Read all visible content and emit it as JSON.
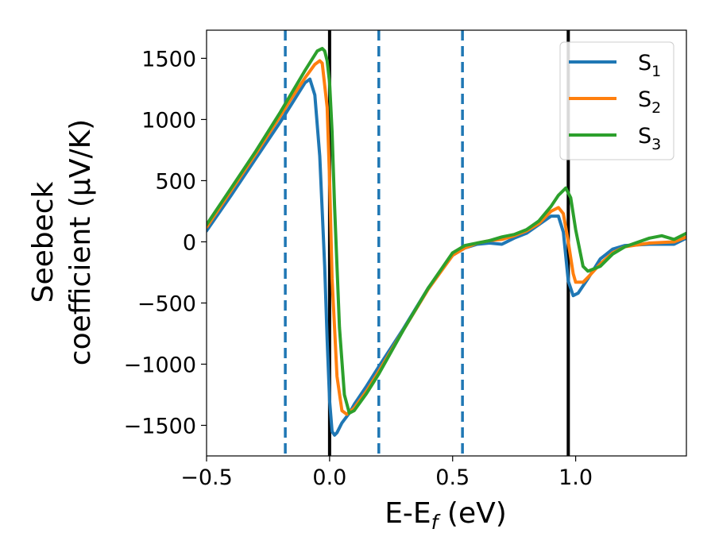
{
  "chart_data": {
    "type": "line",
    "xlabel": "E-E",
    "xlabel_sub": "f",
    "xlabel_unit": " (eV)",
    "ylabel_line1": "Seebeck",
    "ylabel_line2": "coefficient  (μV/K)",
    "xlim": [
      -0.5,
      1.45
    ],
    "ylim": [
      -1750,
      1730
    ],
    "x_ticks": [
      {
        "value": -0.5,
        "label": "−0.5"
      },
      {
        "value": 0.0,
        "label": "0.0"
      },
      {
        "value": 0.5,
        "label": "0.5"
      },
      {
        "value": 1.0,
        "label": "1.0"
      }
    ],
    "y_ticks": [
      {
        "value": 1500,
        "label": "1500"
      },
      {
        "value": 1000,
        "label": "1000"
      },
      {
        "value": 500,
        "label": "500"
      },
      {
        "value": 0,
        "label": "0"
      },
      {
        "value": -500,
        "label": "−500"
      },
      {
        "value": -1000,
        "label": "−1000"
      },
      {
        "value": -1500,
        "label": "−1500"
      }
    ],
    "grid": false,
    "legend_position": "top-right",
    "vlines_solid": [
      0.0,
      0.97
    ],
    "vlines_dashed": [
      -0.18,
      0.2,
      0.54
    ],
    "colors": {
      "S1": "#1f77b4",
      "S2": "#ff7f0e",
      "S3": "#2ca02c",
      "solid_vline": "#000000",
      "dashed_vline": "#1f77b4"
    },
    "series": [
      {
        "name": "S",
        "sub": "1",
        "color": "#1f77b4",
        "x": [
          -0.5,
          -0.4,
          -0.3,
          -0.2,
          -0.15,
          -0.1,
          -0.08,
          -0.06,
          -0.04,
          -0.02,
          -0.01,
          0.0,
          0.01,
          0.02,
          0.03,
          0.05,
          0.08,
          0.1,
          0.15,
          0.2,
          0.3,
          0.4,
          0.5,
          0.55,
          0.6,
          0.65,
          0.7,
          0.75,
          0.8,
          0.85,
          0.9,
          0.93,
          0.95,
          0.97,
          0.99,
          1.01,
          1.05,
          1.1,
          1.15,
          1.2,
          1.3,
          1.4,
          1.45
        ],
        "y": [
          90,
          380,
          680,
          980,
          1140,
          1300,
          1330,
          1200,
          700,
          -200,
          -800,
          -1300,
          -1550,
          -1580,
          -1560,
          -1480,
          -1400,
          -1330,
          -1180,
          -1020,
          -710,
          -380,
          -110,
          -50,
          -20,
          -10,
          -20,
          30,
          70,
          140,
          210,
          210,
          80,
          -320,
          -440,
          -420,
          -300,
          -140,
          -60,
          -30,
          -20,
          -20,
          30
        ]
      },
      {
        "name": "S",
        "sub": "2",
        "color": "#ff7f0e",
        "x": [
          -0.5,
          -0.4,
          -0.3,
          -0.2,
          -0.15,
          -0.1,
          -0.06,
          -0.04,
          -0.03,
          -0.01,
          0.0,
          0.01,
          0.03,
          0.05,
          0.07,
          0.1,
          0.15,
          0.2,
          0.3,
          0.4,
          0.5,
          0.55,
          0.6,
          0.65,
          0.7,
          0.75,
          0.8,
          0.85,
          0.9,
          0.93,
          0.95,
          0.97,
          0.99,
          1.0,
          1.03,
          1.05,
          1.1,
          1.15,
          1.2,
          1.3,
          1.4,
          1.45
        ],
        "y": [
          120,
          420,
          720,
          1030,
          1190,
          1340,
          1450,
          1480,
          1460,
          1100,
          500,
          -300,
          -1100,
          -1380,
          -1410,
          -1360,
          -1220,
          -1060,
          -720,
          -390,
          -110,
          -50,
          -10,
          10,
          20,
          50,
          90,
          150,
          250,
          280,
          230,
          0,
          -260,
          -330,
          -330,
          -290,
          -180,
          -90,
          -40,
          -10,
          0,
          40
        ]
      },
      {
        "name": "S",
        "sub": "3",
        "color": "#2ca02c",
        "x": [
          -0.5,
          -0.4,
          -0.3,
          -0.2,
          -0.15,
          -0.1,
          -0.05,
          -0.03,
          -0.02,
          -0.01,
          0.0,
          0.01,
          0.02,
          0.04,
          0.06,
          0.08,
          0.1,
          0.15,
          0.2,
          0.3,
          0.4,
          0.5,
          0.55,
          0.6,
          0.65,
          0.7,
          0.75,
          0.8,
          0.85,
          0.9,
          0.93,
          0.96,
          0.98,
          1.0,
          1.03,
          1.05,
          1.1,
          1.15,
          1.2,
          1.3,
          1.35,
          1.4,
          1.45
        ],
        "y": [
          140,
          440,
          740,
          1060,
          1230,
          1400,
          1560,
          1580,
          1560,
          1480,
          1300,
          900,
          300,
          -700,
          -1250,
          -1400,
          -1380,
          -1240,
          -1080,
          -720,
          -380,
          -90,
          -30,
          -10,
          10,
          40,
          60,
          100,
          170,
          290,
          380,
          440,
          360,
          100,
          -200,
          -240,
          -200,
          -100,
          -40,
          30,
          50,
          20,
          70
        ]
      }
    ]
  }
}
